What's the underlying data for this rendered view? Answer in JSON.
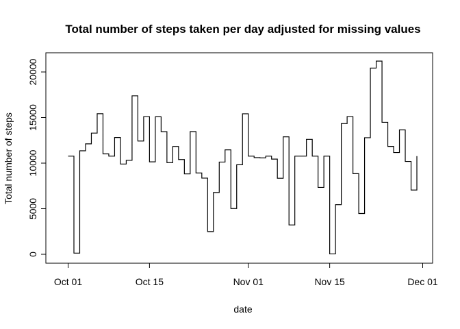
{
  "chart_data": {
    "type": "line",
    "line_style": "step",
    "title": "Total number of steps taken per day adjusted for missing values",
    "xlabel": "date",
    "ylabel": "Total number of steps",
    "start_date": "2012-10-01",
    "x": [
      "2012-10-01",
      "2012-10-02",
      "2012-10-03",
      "2012-10-04",
      "2012-10-05",
      "2012-10-06",
      "2012-10-07",
      "2012-10-08",
      "2012-10-09",
      "2012-10-10",
      "2012-10-11",
      "2012-10-12",
      "2012-10-13",
      "2012-10-14",
      "2012-10-15",
      "2012-10-16",
      "2012-10-17",
      "2012-10-18",
      "2012-10-19",
      "2012-10-20",
      "2012-10-21",
      "2012-10-22",
      "2012-10-23",
      "2012-10-24",
      "2012-10-25",
      "2012-10-26",
      "2012-10-27",
      "2012-10-28",
      "2012-10-29",
      "2012-10-30",
      "2012-10-31",
      "2012-11-01",
      "2012-11-02",
      "2012-11-03",
      "2012-11-04",
      "2012-11-05",
      "2012-11-06",
      "2012-11-07",
      "2012-11-08",
      "2012-11-09",
      "2012-11-10",
      "2012-11-11",
      "2012-11-12",
      "2012-11-13",
      "2012-11-14",
      "2012-11-15",
      "2012-11-16",
      "2012-11-17",
      "2012-11-18",
      "2012-11-19",
      "2012-11-20",
      "2012-11-21",
      "2012-11-22",
      "2012-11-23",
      "2012-11-24",
      "2012-11-25",
      "2012-11-26",
      "2012-11-27",
      "2012-11-28",
      "2012-11-29",
      "2012-11-30"
    ],
    "values": [
      10766,
      126,
      11352,
      12116,
      13294,
      15420,
      11015,
      10766,
      12811,
      9900,
      10304,
      17382,
      12426,
      15098,
      10139,
      15084,
      13452,
      10056,
      11829,
      10395,
      8821,
      13460,
      8918,
      8355,
      2492,
      6778,
      10119,
      11458,
      5018,
      9819,
      15414,
      10766,
      10600,
      10571,
      10766,
      10439,
      8334,
      12883,
      3219,
      10766,
      10766,
      12608,
      10765,
      7336,
      10766,
      41,
      5441,
      14339,
      15110,
      8841,
      4472,
      12787,
      20427,
      21194,
      14478,
      11834,
      11162,
      13646,
      10183,
      7047,
      10766
    ],
    "xlim": [
      "2012-10-01",
      "2012-11-30"
    ],
    "ylim": [
      0,
      21194
    ],
    "x_ticks": [
      {
        "label": "Oct 01",
        "date": "2012-10-01"
      },
      {
        "label": "Oct 15",
        "date": "2012-10-15"
      },
      {
        "label": "Nov 01",
        "date": "2012-11-01"
      },
      {
        "label": "Nov 15",
        "date": "2012-11-15"
      },
      {
        "label": "Dec 01",
        "date": "2012-12-01"
      }
    ],
    "y_ticks": [
      0,
      5000,
      10000,
      15000,
      20000
    ],
    "grid": false,
    "legend": "none"
  }
}
